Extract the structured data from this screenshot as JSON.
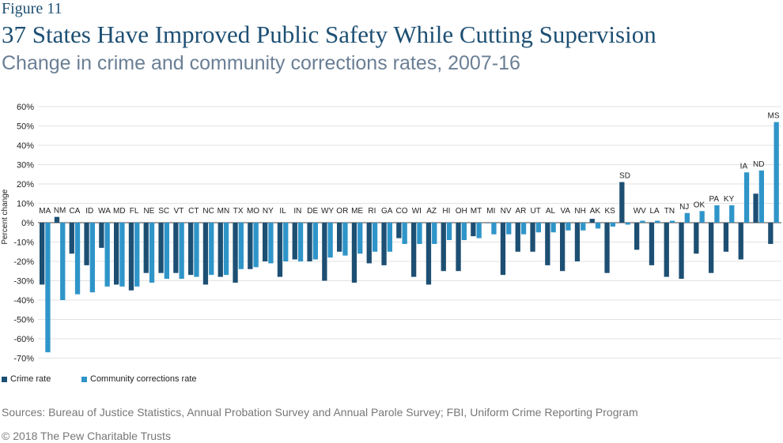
{
  "figure_label": "Figure 11",
  "title": "37 States Have Improved Public Safety While Cutting Supervision",
  "subtitle": "Change in crime and community corrections rates, 2007-16",
  "source": "Sources: Bureau of Justice Statistics, Annual Probation Survey and Annual Parole Survey; FBI, Uniform Crime Reporting Program",
  "copyright": "© 2018 The Pew Charitable Trusts",
  "colors": {
    "crime": "#1d4f73",
    "corrections": "#2f95c9",
    "grid": "#d9d9d9"
  },
  "chart_data": {
    "type": "bar",
    "ylabel": "Percent change",
    "ylim": [
      -70,
      60
    ],
    "yticks": [
      60,
      50,
      40,
      30,
      20,
      10,
      0,
      -10,
      -20,
      -30,
      -40,
      -50,
      -60,
      -70
    ],
    "ytick_labels": [
      "60%",
      "50%",
      "40%",
      "30%",
      "20%",
      "10%",
      "0%",
      "-10%",
      "-20%",
      "-30%",
      "-40%",
      "-50%",
      "-60%",
      "-70%"
    ],
    "grid": true,
    "legend_position": "bottom-left",
    "categories": [
      "MA",
      "NM",
      "CA",
      "ID",
      "WA",
      "MD",
      "FL",
      "NE",
      "SC",
      "VT",
      "CT",
      "NC",
      "MN",
      "TX",
      "MO",
      "NY",
      "IL",
      "IN",
      "DE",
      "WY",
      "OR",
      "ME",
      "RI",
      "GA",
      "CO",
      "WI",
      "AZ",
      "HI",
      "OH",
      "MT",
      "MI",
      "NV",
      "AR",
      "UT",
      "AL",
      "VA",
      "NH",
      "AK",
      "KS",
      "SD",
      "WV",
      "LA",
      "TN",
      "NJ",
      "OK",
      "PA",
      "KY",
      "IA",
      "ND",
      "MS"
    ],
    "series": [
      {
        "name": "Crime rate",
        "values": [
          -32,
          3,
          -16,
          -22,
          -13,
          -32,
          -35,
          -26,
          -26,
          -26,
          -27,
          -32,
          -28,
          -31,
          -24,
          -20,
          -28,
          -19,
          -20,
          -30,
          -15,
          -31,
          -21,
          -22,
          -8,
          -28,
          -32,
          -25,
          -25,
          -7,
          0,
          -27,
          -15,
          -15,
          -22,
          -25,
          -20,
          2,
          -26,
          21,
          -14,
          -22,
          -28,
          -29,
          -16,
          -26,
          -15,
          -19,
          15,
          -11
        ]
      },
      {
        "name": "Community corrections rate",
        "values": [
          -67,
          -40,
          -37,
          -36,
          -33,
          -33,
          -33,
          -31,
          -29,
          -29,
          -28,
          -27,
          -27,
          -24,
          -23,
          -21,
          -20,
          -20,
          -19,
          -18,
          -17,
          -16,
          -15,
          -15,
          -11,
          -11,
          -11,
          -9,
          -9,
          -8,
          -6,
          -6,
          -6,
          -5,
          -5,
          -4,
          -4,
          -3,
          -2,
          -1,
          1,
          1,
          1,
          5,
          6,
          9,
          9,
          26,
          27,
          52
        ]
      }
    ]
  }
}
